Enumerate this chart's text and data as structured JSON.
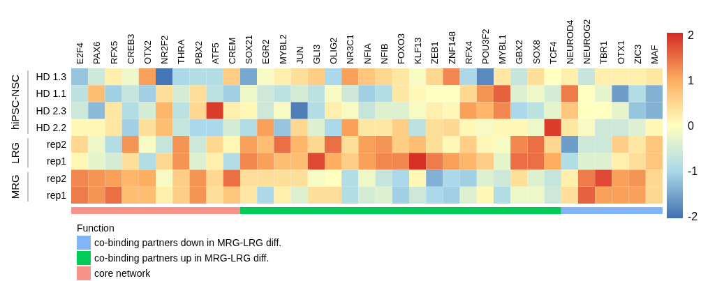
{
  "chart_data": {
    "type": "heatmap",
    "categories": [
      "E2F4",
      "PAX6",
      "RFX5",
      "CREB3",
      "OTX2",
      "NR2F2",
      "THRA",
      "PBX2",
      "ATF5",
      "CREM",
      "SOX21",
      "EGR2",
      "MYBL2",
      "JUN",
      "GLI3",
      "OLIG2",
      "NR3C1",
      "NFIA",
      "NFIB",
      "FOXO3",
      "KLF13",
      "ZEB1",
      "ZNF148",
      "RFX4",
      "POU3F2",
      "MYBL1",
      "GBX2",
      "SOX8",
      "TCF4",
      "NEUROD4",
      "NEUROG2",
      "TBR1",
      "OTX1",
      "ZIC3",
      "MAF"
    ],
    "y_categories": [
      "HD 1.3",
      "HD 1.1",
      "HD 2.3",
      "HD 2.2",
      "rep2",
      "rep1",
      "rep2",
      "rep1"
    ],
    "cells": [
      [
        -1.2,
        -0.6,
        0.2,
        -0.2,
        1.1,
        -2.0,
        -1.0,
        -0.9,
        -0.9,
        0.6,
        -1.5,
        -0.1,
        0.2,
        0.4,
        0.6,
        -1.0,
        1.1,
        0.7,
        0.5,
        0.3,
        -0.1,
        0.5,
        1.3,
        -1.0,
        -1.8,
        0.3,
        -0.7,
        0.4,
        0.0,
        0.2,
        -0.7,
        0.2,
        0.2,
        0.2,
        0.3
      ],
      [
        -0.8,
        0.8,
        -1.1,
        -0.7,
        -1.1,
        0.4,
        -0.5,
        0.4,
        -0.8,
        -1.1,
        -0.2,
        -0.6,
        -0.8,
        -0.5,
        -0.8,
        -0.1,
        -0.6,
        -1.1,
        -0.9,
        0.3,
        0.1,
        0.0,
        0.0,
        0.5,
        1.2,
        1.6,
        -0.4,
        -0.2,
        -0.5,
        1.4,
        0.0,
        -0.3,
        -1.6,
        -0.9,
        -1.4
      ],
      [
        -0.6,
        -1.3,
        0.3,
        -0.9,
        -0.5,
        0.9,
        -0.8,
        0.5,
        1.9,
        0.2,
        0.1,
        -0.6,
        -0.1,
        -1.9,
        -0.9,
        0.2,
        -0.1,
        -0.7,
        -0.4,
        -0.4,
        -0.1,
        0.2,
        0.1,
        1.1,
        0.9,
        1.3,
        -1.0,
        -0.8,
        -0.3,
        0.7,
        0.0,
        0.0,
        -0.3,
        -1.2,
        -1.4
      ],
      [
        0.1,
        0.1,
        0.3,
        -1.1,
        0.4,
        0.8,
        -0.7,
        -1.0,
        -1.0,
        -0.5,
        -0.9,
        1.1,
        -1.2,
        0.5,
        -0.4,
        -1.0,
        1.1,
        0.3,
        0.3,
        0.6,
        -0.8,
        0.4,
        0.5,
        0.1,
        -0.1,
        0.1,
        0.1,
        -0.2,
        1.9,
        0.3,
        -0.1,
        -0.6,
        -0.6,
        -0.4,
        0.1
      ],
      [
        0.5,
        -0.2,
        -0.9,
        1.2,
        -0.1,
        -0.7,
        1.2,
        -0.6,
        0.5,
        0.1,
        1.1,
        0.8,
        1.5,
        0.9,
        0.5,
        1.5,
        0.4,
        1.1,
        1.2,
        0.6,
        0.8,
        0.4,
        0.1,
        0.6,
        0.1,
        -0.1,
        1.3,
        1.5,
        0.5,
        -1.6,
        -0.6,
        -0.6,
        0.6,
        0.3,
        0.7
      ],
      [
        0.1,
        -0.3,
        -0.5,
        0.4,
        -0.9,
        0.5,
        1.2,
        -0.4,
        0.2,
        -0.9,
        1.3,
        1.1,
        0.8,
        0.8,
        1.8,
        1.0,
        0.6,
        1.1,
        1.3,
        1.3,
        2.0,
        1.4,
        1.1,
        0.9,
        0.6,
        -0.3,
        1.5,
        1.5,
        1.0,
        -0.9,
        -0.4,
        -0.4,
        0.2,
        0.4,
        0.7
      ],
      [
        1.3,
        1.2,
        1.1,
        0.9,
        1.0,
        -0.1,
        0.6,
        1.2,
        0.5,
        1.5,
        0.4,
        0.4,
        0.4,
        0.4,
        -0.1,
        0.0,
        -0.9,
        -0.2,
        -0.7,
        -1.0,
        0.1,
        -1.4,
        -1.0,
        -1.1,
        -0.4,
        -0.6,
        0.4,
        -0.4,
        -0.7,
        0.2,
        1.4,
        1.8,
        1.1,
        1.2,
        0.5
      ],
      [
        1.4,
        1.2,
        1.5,
        0.8,
        0.8,
        0.2,
        0.6,
        1.2,
        0.4,
        0.7,
        0.3,
        -1.0,
        0.2,
        -0.4,
        0.4,
        0.4,
        -0.9,
        -0.5,
        -0.4,
        -1.1,
        -0.6,
        -1.0,
        -1.1,
        -0.4,
        0.1,
        -0.9,
        -0.2,
        -0.2,
        -0.6,
        0.4,
        1.6,
        1.1,
        1.1,
        1.1,
        0.5
      ]
    ],
    "clim": [
      -2.05,
      2.05
    ],
    "cticks": [
      -2,
      -1,
      0,
      1,
      2
    ],
    "annotations": [
      "hiPSC-NSC",
      "LRG",
      "MRG",
      "Function",
      "co-binding partners down in MRG-LRG diff.",
      "co-binding partners up in MRG-LRG diff.",
      "core network"
    ]
  }
}
